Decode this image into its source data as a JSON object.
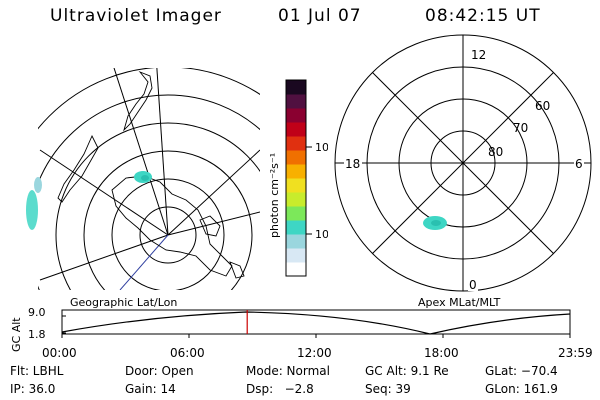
{
  "header": {
    "title": "Ultraviolet Imager",
    "date": "01 Jul 07",
    "time": "08:42:15 UT"
  },
  "colorbar": {
    "unit_label": "photon cm⁻²s⁻¹",
    "ticks": [
      "100",
      "10"
    ],
    "colors": [
      "#ffffff",
      "#d8e8f4",
      "#9ad6de",
      "#3ed6c4",
      "#7ce85a",
      "#c8ec2c",
      "#f0e020",
      "#f8b000",
      "#f07000",
      "#e03010",
      "#c00018",
      "#8a0030",
      "#501040",
      "#1a0820"
    ]
  },
  "right_plot": {
    "mlt_labels": {
      "top": "12",
      "left": "18",
      "right": "6",
      "bottom": "0"
    },
    "lat_labels": [
      "60",
      "70",
      "80"
    ]
  },
  "strip": {
    "left_label": "Geographic Lat/Lon",
    "right_label": "Apex MLat/MLT",
    "axis_label": "GC Alt",
    "y_ticks": [
      "9.0",
      "1.8"
    ],
    "x_ticks": [
      "00:00",
      "06:00",
      "12:00",
      "18:00",
      "23:59"
    ],
    "current_marker_fraction": 0.3645,
    "marker_color": "#cc0000"
  },
  "footer": {
    "row1": [
      "Flt: LBHL",
      "Door: Open",
      "Mode: Normal",
      "GC Alt: 9.1 Re",
      "GLat: −70.4"
    ],
    "row2": [
      "IP: 36.0",
      "Gain: 14",
      "Dsp:   −2.8",
      "Seq: 39",
      "GLon: 161.9"
    ]
  }
}
